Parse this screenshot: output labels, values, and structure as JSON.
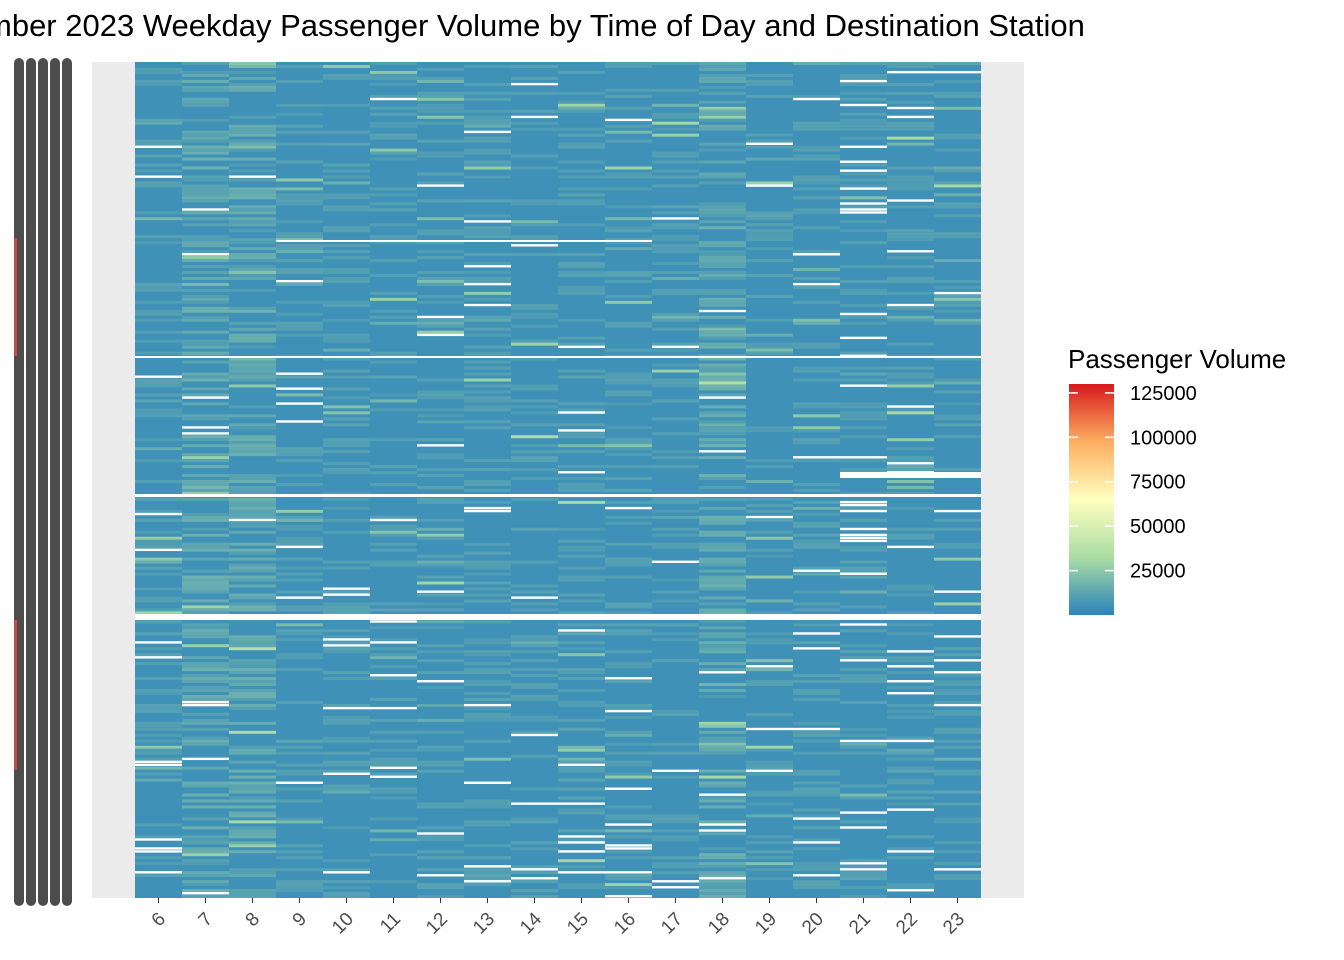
{
  "chart_data": {
    "type": "heatmap",
    "title": "mber 2023 Weekday Passenger Volume by Time of Day and Destination Station",
    "xlabel": "",
    "ylabel": "",
    "x_categories": [
      "6",
      "7",
      "8",
      "9",
      "10",
      "11",
      "12",
      "13",
      "14",
      "15",
      "16",
      "17",
      "18",
      "19",
      "20",
      "21",
      "22",
      "23"
    ],
    "y_tick_labels": "unreadable overlapping station labels (hundreds of rows)",
    "value_range": [
      0,
      130000
    ],
    "legend": {
      "title": "Passenger Volume",
      "placement": "right",
      "breaks": [
        125000,
        100000,
        75000,
        50000,
        25000
      ],
      "break_labels": [
        "125000",
        "100000",
        "75000",
        "50000",
        "25000"
      ],
      "colors": [
        "#2b83ba",
        "#abdda4",
        "#ffffbf",
        "#fdae61",
        "#d7191c"
      ]
    },
    "grid": false,
    "typical_value": 5000,
    "missing_cells": "white gaps where no volume recorded"
  }
}
